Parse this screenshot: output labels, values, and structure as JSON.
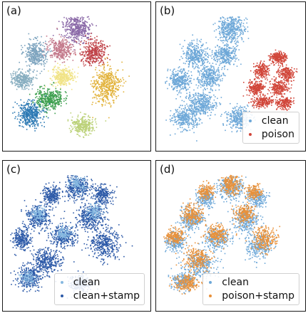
{
  "chart_data": [
    {
      "type": "scatter",
      "panel_label": "(a)",
      "title": "",
      "xlabel": "",
      "ylabel": "",
      "legend": null,
      "series": [
        {
          "color": "#8b6aa8",
          "center": [
            0.5,
            0.14
          ],
          "spread": [
            0.09,
            0.09
          ],
          "count": 420
        },
        {
          "color": "#c47a8c",
          "center": [
            0.38,
            0.3
          ],
          "spread": [
            0.08,
            0.07
          ],
          "count": 340
        },
        {
          "color": "#c0444a",
          "center": [
            0.62,
            0.32
          ],
          "spread": [
            0.08,
            0.08
          ],
          "count": 360
        },
        {
          "color": "#7ba2bd",
          "center": [
            0.2,
            0.33
          ],
          "spread": [
            0.07,
            0.09
          ],
          "count": 330
        },
        {
          "color": "#88aec0",
          "center": [
            0.1,
            0.52
          ],
          "spread": [
            0.07,
            0.06
          ],
          "count": 300
        },
        {
          "color": "#f1e386",
          "center": [
            0.4,
            0.5
          ],
          "spread": [
            0.07,
            0.06
          ],
          "count": 300
        },
        {
          "color": "#e2b23a",
          "center": [
            0.71,
            0.56
          ],
          "spread": [
            0.09,
            0.12
          ],
          "count": 460
        },
        {
          "color": "#3fa050",
          "center": [
            0.3,
            0.66
          ],
          "spread": [
            0.09,
            0.07
          ],
          "count": 380
        },
        {
          "color": "#2c79b4",
          "center": [
            0.16,
            0.77
          ],
          "spread": [
            0.08,
            0.08
          ],
          "count": 400
        },
        {
          "color": "#bcd27a",
          "center": [
            0.54,
            0.85
          ],
          "spread": [
            0.07,
            0.06
          ],
          "count": 300
        }
      ]
    },
    {
      "type": "scatter",
      "panel_label": "(b)",
      "title": "",
      "xlabel": "",
      "ylabel": "",
      "legend": {
        "placement": "lower-right",
        "entries": [
          "clean",
          "poison"
        ]
      },
      "series": [
        {
          "name": "clean",
          "color": "#6ea8d8",
          "clusters": [
            {
              "center": [
                0.5,
                0.15
              ],
              "spread": [
                0.09,
                0.09
              ],
              "count": 400
            },
            {
              "center": [
                0.24,
                0.34
              ],
              "spread": [
                0.08,
                0.08
              ],
              "count": 340
            },
            {
              "center": [
                0.46,
                0.34
              ],
              "spread": [
                0.08,
                0.07
              ],
              "count": 300
            },
            {
              "center": [
                0.13,
                0.52
              ],
              "spread": [
                0.07,
                0.07
              ],
              "count": 300
            },
            {
              "center": [
                0.35,
                0.5
              ],
              "spread": [
                0.08,
                0.07
              ],
              "count": 300
            },
            {
              "center": [
                0.28,
                0.7
              ],
              "spread": [
                0.1,
                0.08
              ],
              "count": 380
            },
            {
              "center": [
                0.17,
                0.8
              ],
              "spread": [
                0.08,
                0.07
              ],
              "count": 300
            },
            {
              "center": [
                0.55,
                0.8
              ],
              "spread": [
                0.08,
                0.07
              ],
              "count": 300
            }
          ]
        },
        {
          "name": "poison",
          "color": "#d1463a",
          "clusters": [
            {
              "center": [
                0.84,
                0.36
              ],
              "spread": [
                0.05,
                0.04
              ],
              "count": 230
            },
            {
              "center": [
                0.72,
                0.45
              ],
              "spread": [
                0.05,
                0.05
              ],
              "count": 200
            },
            {
              "center": [
                0.89,
                0.47
              ],
              "spread": [
                0.05,
                0.05
              ],
              "count": 200
            },
            {
              "center": [
                0.68,
                0.58
              ],
              "spread": [
                0.05,
                0.05
              ],
              "count": 220
            },
            {
              "center": [
                0.84,
                0.58
              ],
              "spread": [
                0.06,
                0.05
              ],
              "count": 220
            },
            {
              "center": [
                0.72,
                0.68
              ],
              "spread": [
                0.07,
                0.04
              ],
              "count": 200
            },
            {
              "center": [
                0.88,
                0.69
              ],
              "spread": [
                0.05,
                0.04
              ],
              "count": 180
            }
          ]
        }
      ]
    },
    {
      "type": "scatter",
      "panel_label": "(c)",
      "title": "",
      "xlabel": "",
      "ylabel": "",
      "legend": {
        "placement": "lower-right",
        "entries": [
          "clean",
          "clean+stamp"
        ]
      },
      "series": [
        {
          "name": "clean+stamp",
          "color": "#2d5aa8",
          "clusters": [
            {
              "center": [
                0.5,
                0.15
              ],
              "spread": [
                0.08,
                0.08
              ],
              "count": 320
            },
            {
              "center": [
                0.32,
                0.2
              ],
              "spread": [
                0.06,
                0.06
              ],
              "count": 240
            },
            {
              "center": [
                0.68,
                0.2
              ],
              "spread": [
                0.06,
                0.06
              ],
              "count": 240
            },
            {
              "center": [
                0.22,
                0.36
              ],
              "spread": [
                0.08,
                0.08
              ],
              "count": 300
            },
            {
              "center": [
                0.6,
                0.36
              ],
              "spread": [
                0.09,
                0.08
              ],
              "count": 340
            },
            {
              "center": [
                0.1,
                0.52
              ],
              "spread": [
                0.06,
                0.07
              ],
              "count": 260
            },
            {
              "center": [
                0.4,
                0.5
              ],
              "spread": [
                0.09,
                0.07
              ],
              "count": 300
            },
            {
              "center": [
                0.7,
                0.55
              ],
              "spread": [
                0.1,
                0.1
              ],
              "count": 360
            },
            {
              "center": [
                0.28,
                0.68
              ],
              "spread": [
                0.1,
                0.08
              ],
              "count": 340
            },
            {
              "center": [
                0.16,
                0.8
              ],
              "spread": [
                0.08,
                0.07
              ],
              "count": 300
            },
            {
              "center": [
                0.52,
                0.84
              ],
              "spread": [
                0.07,
                0.06
              ],
              "count": 240
            }
          ]
        },
        {
          "name": "clean",
          "color": "#86b8e0",
          "clusters": [
            {
              "center": [
                0.5,
                0.12
              ],
              "spread": [
                0.05,
                0.05
              ],
              "count": 120
            },
            {
              "center": [
                0.22,
                0.34
              ],
              "spread": [
                0.05,
                0.05
              ],
              "count": 120
            },
            {
              "center": [
                0.4,
                0.48
              ],
              "spread": [
                0.05,
                0.04
              ],
              "count": 110
            },
            {
              "center": [
                0.62,
                0.32
              ],
              "spread": [
                0.05,
                0.05
              ],
              "count": 110
            },
            {
              "center": [
                0.14,
                0.8
              ],
              "spread": [
                0.05,
                0.04
              ],
              "count": 90
            }
          ]
        }
      ]
    },
    {
      "type": "scatter",
      "panel_label": "(d)",
      "title": "",
      "xlabel": "",
      "ylabel": "",
      "legend": {
        "placement": "lower-right",
        "entries": [
          "clean",
          "poison+stamp"
        ]
      },
      "series": [
        {
          "name": "clean",
          "color": "#6ea8d8",
          "clusters": [
            {
              "center": [
                0.5,
                0.15
              ],
              "spread": [
                0.08,
                0.08
              ],
              "count": 280
            },
            {
              "center": [
                0.32,
                0.22
              ],
              "spread": [
                0.06,
                0.06
              ],
              "count": 200
            },
            {
              "center": [
                0.68,
                0.22
              ],
              "spread": [
                0.06,
                0.06
              ],
              "count": 200
            },
            {
              "center": [
                0.22,
                0.38
              ],
              "spread": [
                0.08,
                0.08
              ],
              "count": 260
            },
            {
              "center": [
                0.6,
                0.38
              ],
              "spread": [
                0.08,
                0.08
              ],
              "count": 260
            },
            {
              "center": [
                0.1,
                0.54
              ],
              "spread": [
                0.06,
                0.06
              ],
              "count": 220
            },
            {
              "center": [
                0.4,
                0.52
              ],
              "spread": [
                0.08,
                0.07
              ],
              "count": 260
            },
            {
              "center": [
                0.7,
                0.56
              ],
              "spread": [
                0.09,
                0.09
              ],
              "count": 280
            },
            {
              "center": [
                0.28,
                0.7
              ],
              "spread": [
                0.1,
                0.08
              ],
              "count": 300
            },
            {
              "center": [
                0.16,
                0.82
              ],
              "spread": [
                0.07,
                0.06
              ],
              "count": 240
            }
          ]
        },
        {
          "name": "poison+stamp",
          "color": "#e8913a",
          "clusters": [
            {
              "center": [
                0.5,
                0.12
              ],
              "spread": [
                0.06,
                0.07
              ],
              "count": 240
            },
            {
              "center": [
                0.32,
                0.18
              ],
              "spread": [
                0.05,
                0.05
              ],
              "count": 160
            },
            {
              "center": [
                0.66,
                0.18
              ],
              "spread": [
                0.05,
                0.05
              ],
              "count": 160
            },
            {
              "center": [
                0.22,
                0.34
              ],
              "spread": [
                0.07,
                0.06
              ],
              "count": 220
            },
            {
              "center": [
                0.6,
                0.34
              ],
              "spread": [
                0.07,
                0.06
              ],
              "count": 220
            },
            {
              "center": [
                0.1,
                0.5
              ],
              "spread": [
                0.06,
                0.05
              ],
              "count": 200
            },
            {
              "center": [
                0.4,
                0.48
              ],
              "spread": [
                0.07,
                0.06
              ],
              "count": 220
            },
            {
              "center": [
                0.74,
                0.52
              ],
              "spread": [
                0.08,
                0.08
              ],
              "count": 240
            },
            {
              "center": [
                0.26,
                0.66
              ],
              "spread": [
                0.09,
                0.07
              ],
              "count": 240
            },
            {
              "center": [
                0.18,
                0.84
              ],
              "spread": [
                0.08,
                0.06
              ],
              "count": 200
            }
          ]
        }
      ]
    }
  ]
}
